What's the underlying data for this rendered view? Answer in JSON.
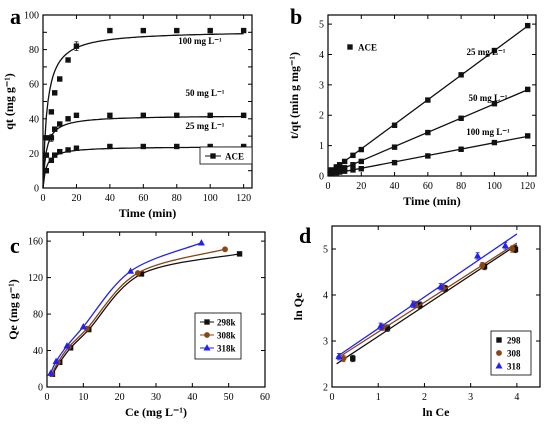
{
  "colors": {
    "black": "#111111",
    "brown": "#8B4513",
    "blue": "#2222ee",
    "axis": "#000000"
  },
  "chart_data": [
    {
      "panel": "a",
      "type": "line",
      "xlabel": "Time (min)",
      "ylabel": "qt (mg g⁻¹)",
      "xlim": [
        0,
        125
      ],
      "ylim": [
        0,
        100
      ],
      "xticks": [
        0,
        20,
        40,
        60,
        80,
        100,
        120
      ],
      "yticks": [
        0,
        10,
        20,
        30,
        40,
        50,
        60,
        70,
        80,
        90,
        100
      ],
      "ytick_labels": [
        "0",
        "",
        "20",
        "",
        "40",
        "",
        "60",
        "",
        "80",
        "",
        "100"
      ],
      "legend": {
        "position": "bottom-right",
        "label": "ACE"
      },
      "x": [
        2,
        5,
        7,
        10,
        15,
        20,
        40,
        60,
        80,
        100,
        120
      ],
      "series": [
        {
          "label": "100 mg L⁻¹",
          "values": [
            29,
            44,
            55,
            63,
            74,
            82,
            91,
            91,
            91,
            91,
            91
          ],
          "err": [
            0.8,
            1,
            1,
            1,
            1,
            2.5,
            1,
            1,
            1,
            1,
            1
          ]
        },
        {
          "label": "50 mg L⁻¹",
          "values": [
            19,
            29,
            34,
            37,
            40,
            42,
            42,
            42,
            42,
            42,
            42
          ],
          "err": [
            0.6,
            2,
            1,
            0.8,
            0.8,
            0.8,
            0.5,
            0.5,
            0.5,
            0.5,
            0.5
          ]
        },
        {
          "label": "25 mg L⁻¹",
          "values": [
            10,
            16,
            19,
            21,
            22,
            23,
            24,
            24,
            24,
            24,
            24
          ],
          "err": [
            0.5,
            0.8,
            0.6,
            0.6,
            0.5,
            0.5,
            0.4,
            0.4,
            0.4,
            0.4,
            0.4
          ]
        }
      ]
    },
    {
      "panel": "b",
      "type": "scatter",
      "xlabel": "Time (min)",
      "ylabel": "t/qt (min g mg⁻¹)",
      "xlim": [
        0,
        125
      ],
      "ylim": [
        0,
        5.3
      ],
      "xticks": [
        0,
        20,
        40,
        60,
        80,
        100,
        120
      ],
      "yticks": [
        0,
        1,
        2,
        3,
        4,
        5
      ],
      "legend": {
        "position": "top-left",
        "label": "ACE"
      },
      "x": [
        2,
        5,
        7,
        10,
        15,
        20,
        40,
        60,
        80,
        100,
        120
      ],
      "series": [
        {
          "label": "25 mg L⁻¹",
          "values": [
            0.2,
            0.3,
            0.37,
            0.48,
            0.68,
            0.87,
            1.67,
            2.5,
            3.33,
            4.13,
            4.95
          ],
          "err": [
            0.04,
            0.05,
            0.05,
            0.05,
            0.05,
            0.06,
            0.06,
            0.05,
            0.05,
            0.05,
            0.06
          ]
        },
        {
          "label": "50 mg L⁻¹",
          "values": [
            0.1,
            0.17,
            0.21,
            0.27,
            0.37,
            0.48,
            0.95,
            1.43,
            1.9,
            2.38,
            2.85
          ],
          "err": [
            0.03,
            0.04,
            0.04,
            0.04,
            0.04,
            0.05,
            0.05,
            0.05,
            0.05,
            0.06,
            0.07
          ]
        },
        {
          "label": "100 mg L⁻¹",
          "values": [
            0.07,
            0.11,
            0.13,
            0.16,
            0.2,
            0.24,
            0.44,
            0.66,
            0.88,
            1.1,
            1.32
          ],
          "err": [
            0.02,
            0.03,
            0.03,
            0.03,
            0.03,
            0.03,
            0.03,
            0.03,
            0.03,
            0.03,
            0.03
          ]
        }
      ]
    },
    {
      "panel": "c",
      "type": "line",
      "xlabel": "Ce (mg L⁻¹)",
      "ylabel": "Qe (mg g⁻¹)",
      "xlim": [
        0,
        60
      ],
      "ylim": [
        0,
        170
      ],
      "xticks": [
        0,
        10,
        20,
        30,
        40,
        50,
        60
      ],
      "yticks": [
        0,
        40,
        80,
        120,
        160
      ],
      "legend": {
        "position": "middle-right"
      },
      "series": [
        {
          "name": "298k",
          "color": "#111111",
          "marker": "square",
          "x": [
            1.5,
            3.5,
            6.5,
            11.5,
            26,
            53
          ],
          "values": [
            14,
            27,
            43,
            63,
            124,
            146
          ]
        },
        {
          "name": "308k",
          "color": "#8B4513",
          "marker": "circle",
          "x": [
            1.3,
            3.0,
            6.0,
            11.0,
            25,
            49
          ],
          "values": [
            14,
            27,
            44,
            64,
            125,
            151
          ]
        },
        {
          "name": "318k",
          "color": "#2222ee",
          "marker": "triangle",
          "x": [
            1.0,
            2.5,
            5.5,
            10.0,
            23,
            42.5
          ],
          "values": [
            15,
            28,
            45,
            66,
            127,
            158
          ]
        }
      ]
    },
    {
      "panel": "d",
      "type": "scatter",
      "xlabel": "ln Ce",
      "ylabel": "ln Qe",
      "xlim": [
        0,
        4.5
      ],
      "ylim": [
        2,
        5.5
      ],
      "xticks": [
        0,
        1,
        2,
        3,
        4
      ],
      "yticks": [
        2,
        3,
        4,
        5
      ],
      "legend": {
        "position": "bottom-right"
      },
      "series": [
        {
          "name": "298",
          "color": "#111111",
          "marker": "square",
          "x": [
            0.45,
            1.2,
            1.9,
            2.45,
            3.3,
            3.97
          ],
          "values": [
            2.62,
            3.28,
            3.78,
            4.14,
            4.62,
            4.99
          ]
        },
        {
          "name": "308",
          "color": "#8B4513",
          "marker": "circle",
          "x": [
            0.25,
            1.1,
            1.8,
            2.4,
            3.25,
            3.9
          ],
          "values": [
            2.62,
            3.3,
            3.79,
            4.15,
            4.64,
            5.0
          ]
        },
        {
          "name": "318",
          "color": "#2222ee",
          "marker": "triangle",
          "x": [
            0.15,
            1.05,
            1.75,
            2.35,
            3.15,
            3.75
          ],
          "values": [
            2.66,
            3.32,
            3.8,
            4.18,
            4.85,
            5.07
          ]
        }
      ]
    }
  ]
}
